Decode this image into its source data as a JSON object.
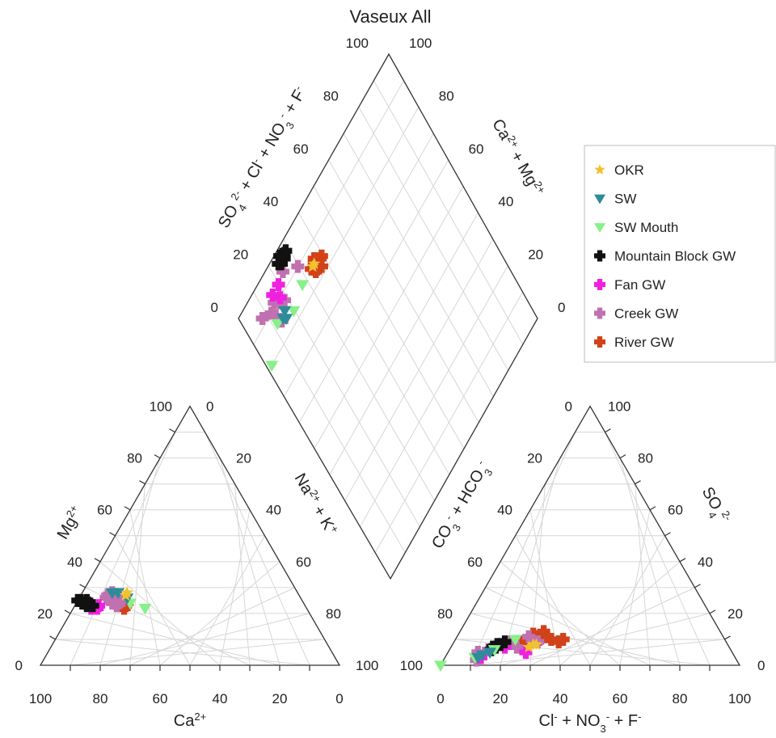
{
  "chart_data": {
    "type": "scatter",
    "subtype": "piper-diagram",
    "title": "Vaseux All",
    "grid": true,
    "legend_position": "top-right",
    "tick_values": [
      0,
      20,
      40,
      60,
      80,
      100
    ],
    "cation_triangle": {
      "bottom_label": "Ca",
      "bottom_sup": "2+",
      "left_label": "Mg",
      "left_sup": "2+",
      "right_label": "Na",
      "right_label_suffix": " + K",
      "right_sup1": "2+",
      "right_sup2": "+"
    },
    "anion_triangle": {
      "bottom_label_parts": [
        "Cl",
        "-",
        " + NO",
        "3",
        "-",
        " + F",
        "-"
      ],
      "left_label_parts": [
        "CO",
        "3",
        "-",
        " + HCO",
        "3",
        "-"
      ],
      "right_label_parts": [
        "SO",
        "4",
        "2-"
      ]
    },
    "diamond": {
      "left_label_parts": [
        "SO",
        "4",
        "2-",
        " + Cl",
        "-",
        " + NO",
        "3",
        "-",
        " + F",
        "-"
      ],
      "right_label_parts": [
        "Ca",
        "2+",
        " + Mg",
        "2+"
      ]
    },
    "series": [
      {
        "name": "OKR",
        "marker": "star",
        "color": "#F2C12E",
        "cation": [
          [
            58,
            27
          ],
          [
            57,
            28
          ]
        ],
        "anion": [
          [
            26,
            7
          ],
          [
            27,
            8
          ],
          [
            28,
            8
          ]
        ],
        "diamond": [
          [
            35,
            85
          ],
          [
            36,
            85
          ]
        ]
      },
      {
        "name": "SW",
        "marker": "triangle-down",
        "color": "#2E8B99",
        "cation": [
          [
            60,
            28
          ],
          [
            62,
            28
          ],
          [
            58,
            26
          ]
        ],
        "anion": [
          [
            11,
            3
          ],
          [
            12,
            4
          ],
          [
            14,
            5
          ]
        ],
        "diamond": [
          [
            15,
            85
          ],
          [
            17,
            86
          ],
          [
            16,
            84
          ]
        ]
      },
      {
        "name": "SW Mouth",
        "marker": "triangle-down",
        "color": "#88F08A",
        "cation": [
          [
            54,
            22
          ],
          [
            58,
            24
          ]
        ],
        "anion": [
          [
            0,
            0
          ],
          [
            10,
            3
          ],
          [
            15,
            6
          ],
          [
            20,
            10
          ]
        ],
        "diamond": [
          [
            2,
            80
          ],
          [
            28,
            85
          ],
          [
            12,
            86
          ],
          [
            20,
            83
          ]
        ]
      },
      {
        "name": "Mountain Block GW",
        "marker": "plus",
        "color": "#111111",
        "cation": [
          [
            73,
            24
          ],
          [
            74,
            25
          ],
          [
            72,
            24
          ],
          [
            71,
            23
          ],
          [
            75,
            25
          ],
          [
            73,
            23
          ],
          [
            72,
            25
          ],
          [
            74,
            24
          ]
        ],
        "anion": [
          [
            14,
            7
          ],
          [
            15,
            8
          ],
          [
            16,
            8
          ],
          [
            15,
            7
          ],
          [
            17,
            9
          ],
          [
            14,
            6
          ]
        ],
        "diamond": [
          [
            28,
            97
          ],
          [
            27,
            96
          ],
          [
            25,
            96
          ],
          [
            24,
            97
          ],
          [
            26,
            98
          ],
          [
            29,
            97
          ]
        ]
      },
      {
        "name": "Fan GW",
        "marker": "plus",
        "color": "#F020E0",
        "cation": [
          [
            71,
            23
          ],
          [
            70,
            22
          ],
          [
            72,
            22
          ],
          [
            69,
            23
          ]
        ],
        "anion": [
          [
            12,
            3
          ],
          [
            18,
            7
          ],
          [
            26,
            5
          ]
        ],
        "diamond": [
          [
            20,
            93
          ],
          [
            16,
            93
          ],
          [
            18,
            90
          ]
        ]
      },
      {
        "name": "Creek GW",
        "marker": "plus",
        "color": "#C170B0",
        "cation": [
          [
            62,
            24
          ],
          [
            63,
            26
          ],
          [
            64,
            27
          ],
          [
            62,
            28
          ],
          [
            61,
            26
          ],
          [
            64,
            24
          ],
          [
            60,
            25
          ],
          [
            63,
            23
          ],
          [
            65,
            26
          ]
        ],
        "anion": [
          [
            10,
            5
          ],
          [
            12,
            3
          ],
          [
            13,
            6
          ],
          [
            16,
            8
          ],
          [
            19,
            9
          ],
          [
            22,
            7
          ],
          [
            28,
            9
          ],
          [
            24,
            11
          ],
          [
            11,
            2
          ]
        ],
        "diamond": [
          [
            14,
            85
          ],
          [
            13,
            88
          ],
          [
            12,
            90
          ],
          [
            8,
            92
          ],
          [
            30,
            90
          ],
          [
            24,
            94
          ],
          [
            19,
            88
          ],
          [
            17,
            89
          ],
          [
            15,
            91
          ]
        ]
      },
      {
        "name": "River GW",
        "marker": "plus",
        "color": "#D2421A",
        "cation": [
          [
            61,
            24
          ],
          [
            62,
            25
          ],
          [
            60,
            23
          ],
          [
            63,
            24
          ],
          [
            59,
            24
          ],
          [
            61,
            22
          ],
          [
            62,
            23
          ]
        ],
        "anion": [
          [
            24,
            8
          ],
          [
            26,
            9
          ],
          [
            28,
            10
          ],
          [
            30,
            11
          ],
          [
            25,
            12
          ],
          [
            27,
            11
          ],
          [
            32,
            10
          ],
          [
            35,
            9
          ],
          [
            36,
            10
          ],
          [
            23,
            9
          ],
          [
            28,
            13
          ]
        ],
        "diamond": [
          [
            35,
            84
          ],
          [
            36,
            85
          ],
          [
            38,
            82
          ],
          [
            34,
            85
          ],
          [
            37,
            86
          ],
          [
            39,
            84
          ],
          [
            36,
            83
          ],
          [
            40,
            84
          ],
          [
            35,
            83
          ]
        ]
      }
    ]
  }
}
